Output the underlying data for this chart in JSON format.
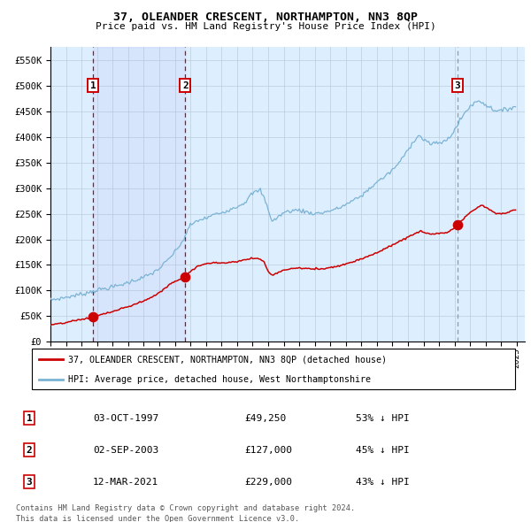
{
  "title": "37, OLEANDER CRESCENT, NORTHAMPTON, NN3 8QP",
  "subtitle": "Price paid vs. HM Land Registry's House Price Index (HPI)",
  "sale_dates_num": [
    1997.75,
    2003.667,
    2021.167
  ],
  "sale_prices": [
    49250,
    127000,
    229000
  ],
  "sale_labels": [
    "1",
    "2",
    "3"
  ],
  "legend_line1": "37, OLEANDER CRESCENT, NORTHAMPTON, NN3 8QP (detached house)",
  "legend_line2": "HPI: Average price, detached house, West Northamptonshire",
  "table_rows": [
    [
      "1",
      "03-OCT-1997",
      "£49,250",
      "53% ↓ HPI"
    ],
    [
      "2",
      "02-SEP-2003",
      "£127,000",
      "45% ↓ HPI"
    ],
    [
      "3",
      "12-MAR-2021",
      "£229,000",
      "43% ↓ HPI"
    ]
  ],
  "footnote1": "Contains HM Land Registry data © Crown copyright and database right 2024.",
  "footnote2": "This data is licensed under the Open Government Licence v3.0.",
  "hpi_color": "#7ab3d4",
  "price_color": "#cc0000",
  "bg_color": "#ddeeff",
  "grid_color": "#bbccdd",
  "vline_color_red": "#cc0000",
  "vline_color_grey": "#999999",
  "ylim": [
    0,
    575000
  ],
  "yticks": [
    0,
    50000,
    100000,
    150000,
    200000,
    250000,
    300000,
    350000,
    400000,
    450000,
    500000,
    550000
  ],
  "xstart": 1995.0,
  "xend": 2025.5
}
